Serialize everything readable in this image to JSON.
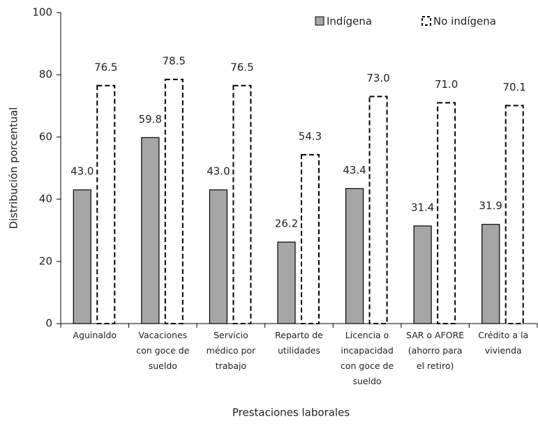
{
  "chart_data": {
    "type": "bar",
    "x_label": "Prestaciones laborales",
    "y_label": "Distribución porcentual",
    "categories": [
      "Aguinaldo",
      "Vacaciones\ncon goce de\nsueldo",
      "Servicio\nmédico por\ntrabajo",
      "Reparto de\nutilidades",
      "Licencia o\nincapacidad\ncon goce de\nsueldo",
      "SAR o AFORE\n(ahorro para\nel retiro)",
      "Crédito a la\nvivienda"
    ],
    "series": [
      {
        "name": "Indígena",
        "color": "#a6a6a6",
        "style": "solid",
        "values": [
          43,
          59.8,
          43,
          26.2,
          43.4,
          31.4,
          31.9
        ],
        "value_labels": [
          "43.0",
          "59.8",
          "43.0",
          "26.2",
          "43.4",
          "31.4",
          "31.9"
        ]
      },
      {
        "name": "No indígena",
        "color": "#ffffff",
        "style": "dashed",
        "values": [
          76.5,
          78.5,
          76.5,
          54.3,
          73,
          71,
          70.1
        ],
        "value_labels": [
          "76.5",
          "78.5",
          "76.5",
          "54.3",
          "73.0",
          "71.0",
          "70.1"
        ]
      }
    ],
    "ylim": [
      0,
      100
    ],
    "yticks": [
      0,
      20,
      40,
      60,
      80,
      100
    ],
    "grid": false,
    "legend": "top-right"
  }
}
